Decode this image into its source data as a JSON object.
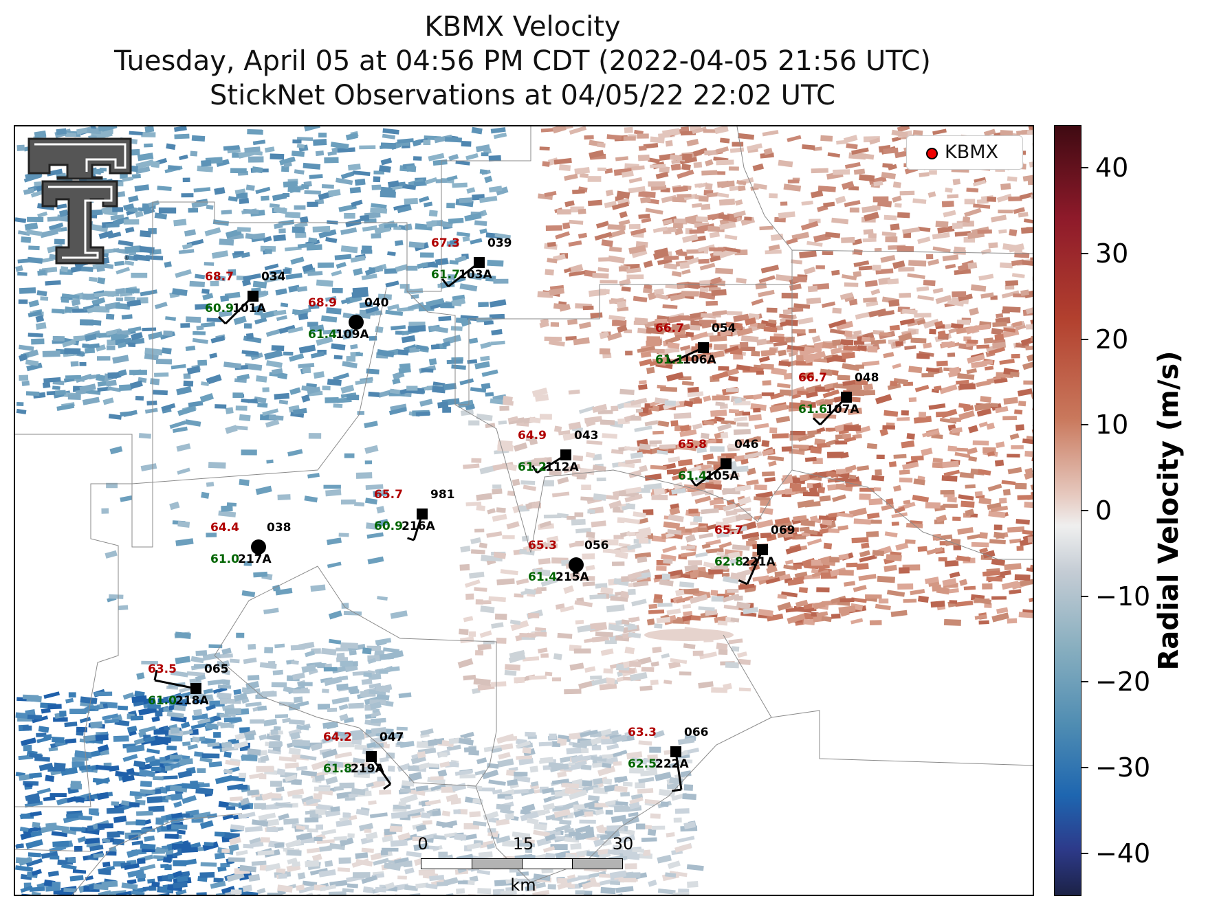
{
  "title": {
    "line1": "KBMX Velocity",
    "line2": "Tuesday, April 05 at 04:56 PM CDT (2022-04-05 21:56 UTC)",
    "line3": "StickNet Observations at 04/05/22 22:02 UTC"
  },
  "legend": {
    "label": "KBMX",
    "marker_color": "#e00000"
  },
  "colorbar": {
    "title": "Radial Velocity (m/s)",
    "ticks": [
      "40",
      "30",
      "20",
      "10",
      "0",
      "−10",
      "−20",
      "−30",
      "−40"
    ],
    "range": [
      -45,
      45
    ]
  },
  "scale_bar": {
    "labels": [
      "0",
      "15",
      "30"
    ],
    "unit": "km"
  },
  "logo": {
    "name": "texas-tech-double-t-logo"
  },
  "stations": [
    {
      "id": "101A",
      "temp": "68.7",
      "dew": "60.9",
      "wind": "034"
    },
    {
      "id": "109A",
      "temp": "68.9",
      "dew": "61.4",
      "wind": "040"
    },
    {
      "id": "103A",
      "temp": "67.3",
      "dew": "61.7",
      "wind": "039"
    },
    {
      "id": "106A",
      "temp": "66.7",
      "dew": "61.1",
      "wind": "054"
    },
    {
      "id": "107A",
      "temp": "66.7",
      "dew": "61.6",
      "wind": "048"
    },
    {
      "id": "112A",
      "temp": "64.9",
      "dew": "61.2",
      "wind": "043"
    },
    {
      "id": "105A",
      "temp": "65.8",
      "dew": "61.4",
      "wind": "046"
    },
    {
      "id": "216A",
      "temp": "65.7",
      "dew": "60.9",
      "wind": "981"
    },
    {
      "id": "217A",
      "temp": "64.4",
      "dew": "61.0",
      "wind": "038"
    },
    {
      "id": "215A",
      "temp": "65.3",
      "dew": "61.4",
      "wind": "056"
    },
    {
      "id": "221A",
      "temp": "65.7",
      "dew": "62.8",
      "wind": "069"
    },
    {
      "id": "218A",
      "temp": "63.5",
      "dew": "61.0",
      "wind": "065"
    },
    {
      "id": "219A",
      "temp": "64.2",
      "dew": "61.8",
      "wind": "047"
    },
    {
      "id": "222A",
      "temp": "63.3",
      "dew": "62.5",
      "wind": "066"
    }
  ]
}
